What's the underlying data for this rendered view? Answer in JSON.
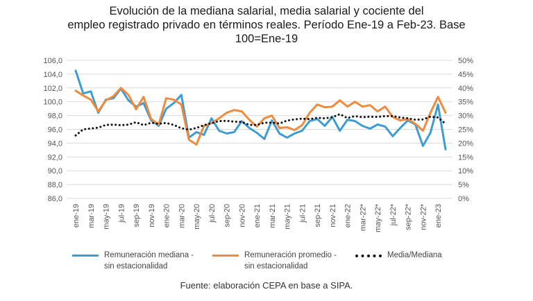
{
  "title_lines": [
    "Evolución de la mediana salarial, media salarial y cociente del",
    "empleo registrado privado en términos reales. Período Ene-19 a Feb-23. Base",
    "100=Ene-19"
  ],
  "source": "Fuente: elaboración CEPA en base a SIPA.",
  "colors": {
    "mediana": "#3d9dd0",
    "promedio": "#f08a3c",
    "cociente": "#111111",
    "grid": "#d9d9d9"
  },
  "chart_data": {
    "type": "line",
    "x_tick_labels": [
      "ene-19",
      "mar-19",
      "may-19",
      "jul-19",
      "sep-19",
      "nov-19",
      "ene-20",
      "mar-20",
      "may-20",
      "jul-20",
      "sep-20",
      "nov-20",
      "ene-21",
      "mar-21",
      "may-21",
      "jul-21",
      "sep-21",
      "nov-21",
      "ene-22",
      "mar-22*",
      "may-22*",
      "jul-22*",
      "sep-22*",
      "nov-22*",
      "ene-23"
    ],
    "y_left": {
      "min": 86,
      "max": 106,
      "step": 2,
      "tick_labels": [
        "86,0",
        "88,0",
        "90,0",
        "92,0",
        "94,0",
        "96,0",
        "98,0",
        "100,0",
        "102,0",
        "104,0",
        "106,0"
      ]
    },
    "y_right": {
      "min": 0,
      "max": 50,
      "step": 5,
      "tick_labels": [
        "0%",
        "5%",
        "10%",
        "15%",
        "20%",
        "25%",
        "30%",
        "35%",
        "40%",
        "45%",
        "50%"
      ]
    },
    "series": [
      {
        "name_lines": [
          "Remuneración mediana -",
          "sin estacionalidad"
        ],
        "axis": "left",
        "style": "solid",
        "color_key": "mediana",
        "values": [
          104.5,
          101.2,
          101.5,
          98.4,
          100.3,
          100.5,
          101.9,
          100.2,
          99.3,
          99.8,
          97.3,
          96.5,
          99.0,
          99.8,
          101.0,
          94.8,
          95.6,
          95.2,
          97.6,
          95.8,
          95.4,
          95.6,
          97.2,
          96.2,
          95.5,
          94.6,
          97.3,
          95.4,
          94.8,
          95.4,
          95.8,
          97.2,
          97.5,
          96.5,
          97.8,
          95.8,
          97.4,
          97.2,
          96.5,
          96.1,
          96.7,
          96.4,
          95.0,
          96.2,
          97.3,
          96.7,
          93.6,
          95.5,
          99.6,
          93.1
        ]
      },
      {
        "name_lines": [
          "Remuneración promedio -",
          "sin estacionalidad"
        ],
        "axis": "left",
        "style": "solid",
        "color_key": "promedio",
        "values": [
          101.6,
          100.9,
          100.3,
          98.6,
          100.2,
          100.8,
          102.0,
          101.0,
          98.9,
          100.7,
          97.5,
          96.7,
          100.5,
          100.3,
          99.6,
          94.5,
          93.8,
          96.5,
          96.9,
          97.6,
          98.4,
          98.8,
          98.6,
          97.4,
          96.4,
          97.6,
          98.0,
          96.2,
          96.3,
          95.9,
          96.6,
          98.4,
          99.6,
          99.2,
          99.3,
          100.2,
          99.3,
          100.0,
          99.3,
          99.5,
          98.6,
          99.3,
          97.8,
          97.3,
          97.5,
          96.8,
          95.8,
          98.4,
          100.7,
          98.4
        ]
      },
      {
        "name": "Media/Mediana",
        "axis": "right",
        "style": "dotted",
        "color_key": "cociente",
        "values": [
          22.8,
          25.0,
          25.3,
          25.6,
          26.6,
          26.7,
          26.5,
          26.7,
          27.6,
          26.5,
          27.4,
          27.0,
          27.3,
          26.6,
          25.4,
          24.9,
          25.5,
          26.5,
          27.2,
          28.0,
          28.1,
          27.8,
          27.7,
          26.6,
          26.6,
          27.4,
          27.4,
          27.1,
          28.2,
          28.6,
          28.9,
          28.7,
          29.2,
          29.0,
          29.4,
          30.5,
          29.1,
          29.8,
          29.4,
          29.6,
          29.5,
          29.8,
          29.8,
          29.3,
          29.0,
          28.5,
          28.6,
          29.6,
          29.3,
          27.0
        ]
      }
    ],
    "legend_position": "bottom",
    "grid": "horizontal"
  }
}
